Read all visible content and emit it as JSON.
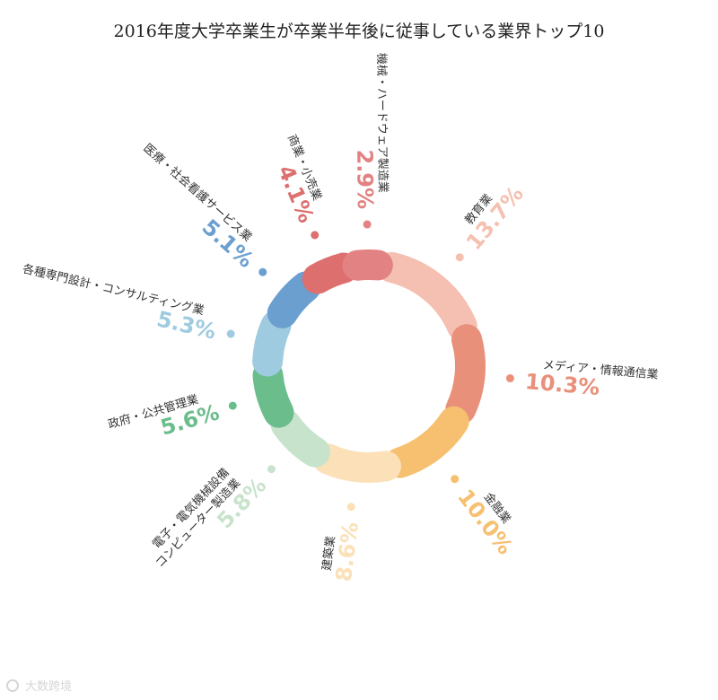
{
  "chart_data": {
    "type": "radial-bar",
    "title": "2016年度大学卒業生が卒業半年後に従事している業界トップ10",
    "series": [
      {
        "category": "教育業",
        "value": 13.7,
        "label": "13.7%",
        "color": "#f5c0b1"
      },
      {
        "category": "メディア・情報通信業",
        "value": 10.3,
        "label": "10.3%",
        "color": "#e9907a"
      },
      {
        "category": "金融業",
        "value": 10.0,
        "label": "10.0%",
        "color": "#f6c070"
      },
      {
        "category": "建築業",
        "value": 8.6,
        "label": "8.6%",
        "color": "#fbe0b8"
      },
      {
        "category": "電子・電気機械設備\nコンピューター製造業",
        "value": 5.8,
        "label": "5.8%",
        "color": "#c8e3cc"
      },
      {
        "category": "政府・公共管理業",
        "value": 5.6,
        "label": "5.6%",
        "color": "#6bbd8c"
      },
      {
        "category": "各種専門設計・コンサルティング業",
        "value": 5.3,
        "label": "5.3%",
        "color": "#9fcbe0"
      },
      {
        "category": "医療・社会看護サービス業",
        "value": 5.1,
        "label": "5.1%",
        "color": "#6a9fd0"
      },
      {
        "category": "商業・小売業",
        "value": 4.1,
        "label": "4.1%",
        "color": "#dd6f6f"
      },
      {
        "category": "機械・ハードウェア製造業",
        "value": 2.9,
        "label": "2.9%",
        "color": "#e38282"
      }
    ]
  },
  "watermark": {
    "text": "大数跨境"
  }
}
